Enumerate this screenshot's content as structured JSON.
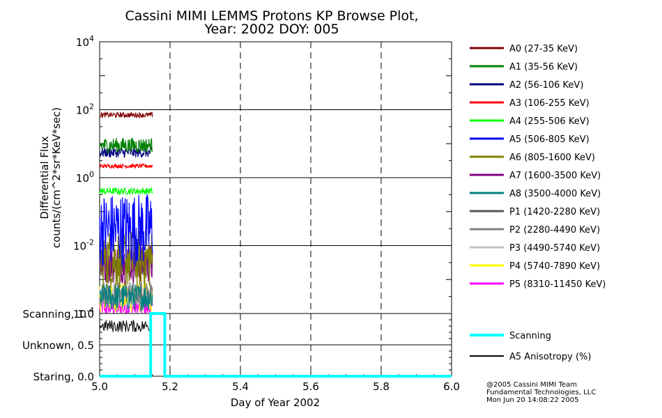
{
  "chart_data": {
    "type": "line",
    "title": [
      "Cassini MIMI LEMMS Protons KP Browse Plot,",
      "Year: 2002 DOY: 005"
    ],
    "xlabel": "Day of Year 2002",
    "xlim": [
      5.0,
      6.0
    ],
    "x_ticks": [
      "5.0",
      "5.2",
      "5.4",
      "5.6",
      "5.8",
      "6.0"
    ],
    "top_panel": {
      "ylabel": [
        "Differential Flux",
        "counts/(cm^2*sr*KeV*sec)"
      ],
      "yscale": "log",
      "ylim_exponents": [
        -4,
        4
      ],
      "y_ticks": [
        {
          "base": "10",
          "exp": "4"
        },
        {
          "base": "10",
          "exp": "2"
        },
        {
          "base": "10",
          "exp": "0"
        },
        {
          "base": "10",
          "exp": "-2"
        },
        {
          "base": "10",
          "exp": "-4"
        }
      ],
      "x_range_of_data": [
        5.0,
        5.15
      ],
      "series": [
        {
          "name": "A0 (27-35 KeV)",
          "color": "#800000",
          "level": 70,
          "noise": 0.15
        },
        {
          "name": "A1 (35-56 KeV)",
          "color": "#008000",
          "level": 9,
          "noise": 0.45
        },
        {
          "name": "A2 (56-106 KeV)",
          "color": "#000080",
          "level": 5.5,
          "noise": 0.3
        },
        {
          "name": "A3 (106-255 KeV)",
          "color": "#ff0000",
          "level": 2.2,
          "noise": 0.12
        },
        {
          "name": "A4 (255-506 KeV)",
          "color": "#00ff00",
          "level": 0.4,
          "noise": 0.2
        },
        {
          "name": "A5 (506-805 KeV)",
          "color": "#0000ff",
          "level": 0.03,
          "noise": 2.2
        },
        {
          "name": "A6 (805-1600 KeV)",
          "color": "#808000",
          "level": 0.004,
          "noise": 1.8
        },
        {
          "name": "A7 (1600-3500 KeV)",
          "color": "#800080",
          "level": 0.003,
          "noise": 1.2
        },
        {
          "name": "A8 (3500-4000 KeV)",
          "color": "#008080",
          "level": 0.0003,
          "noise": 0.8
        },
        {
          "name": "P1 (1420-2280 KeV)",
          "color": "#555555",
          "level": 0.003,
          "noise": 0.7
        },
        {
          "name": "P2 (2280-4490 KeV)",
          "color": "#808080",
          "level": 0.0004,
          "noise": 0.7
        },
        {
          "name": "P3 (4490-5740 KeV)",
          "color": "#c0c0c0",
          "level": 0.0003,
          "noise": 0.6
        },
        {
          "name": "P4 (5740-7890 KeV)",
          "color": "#ffff00",
          "level": 0.0003,
          "noise": 0.9
        },
        {
          "name": "P5 (8310-11450 KeV)",
          "color": "#ff00ff",
          "level": 0.00015,
          "noise": 0.6
        }
      ]
    },
    "bottom_panel": {
      "ylim": [
        0,
        1
      ],
      "y_ticks": [
        "Scanning, 1.0",
        "Unknown, 0.5",
        "Staring, 0.0"
      ],
      "series": [
        {
          "name": "Scanning",
          "color": "#00ffff",
          "steps": [
            [
              5.0,
              0.0
            ],
            [
              5.145,
              0.0
            ],
            [
              5.145,
              1.0
            ],
            [
              5.185,
              1.0
            ],
            [
              5.185,
              0.0
            ],
            [
              6.0,
              0.0
            ]
          ]
        },
        {
          "name": "A5 Anisotropy (%)",
          "color": "#000000",
          "x_range": [
            5.0,
            5.145
          ],
          "level": 0.8,
          "noise": 0.1
        }
      ]
    }
  },
  "footer": [
    "@2005 Cassini MIMI Team",
    "Fundamental Technologies, LLC",
    "Mon Jun 20 14:08:22 2005"
  ]
}
